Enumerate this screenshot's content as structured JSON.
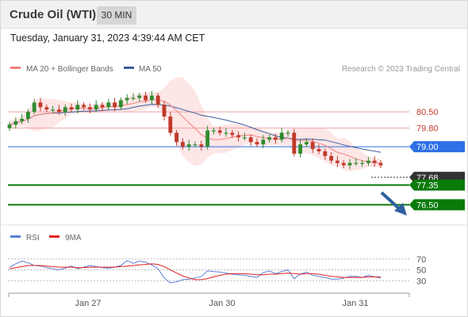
{
  "header": {
    "title": "Crude Oil (WTI)",
    "timeframe": "30 MIN"
  },
  "timestamp": "Tuesday, January 31, 2023 4:39:44 AM CET",
  "legend": {
    "ma20": "MA 20 + Bollinger Bands",
    "ma50": "MA 50",
    "credit": "Research © 2023 Trading Central"
  },
  "rsi_legend": {
    "rsi": "RSI",
    "ma9": "9MA"
  },
  "colors": {
    "ma20": "#f08080",
    "band": "#fde2e2",
    "ma50": "#3c5fa0",
    "support": "#0a7a0a",
    "pivot": "#2e6fe6",
    "resistance": "#f2a0a0",
    "current": "#333333",
    "up": "#2e8b2e",
    "down": "#c0392b",
    "arrow": "#2f5f9e",
    "rsi": "#5b7fd8",
    "rsi_ma": "#e02020"
  },
  "chart_data": [
    {
      "type": "candlestick",
      "title": "Crude Oil (WTI)",
      "interval": "30 MIN",
      "x_ticks": [
        "Jan 27",
        "Jan 30",
        "Jan 31"
      ],
      "y_range": [
        75.9,
        81.8
      ],
      "grid": false,
      "legend_position": "top-left",
      "series": [
        {
          "name": "Price",
          "approx_closes": [
            79.95,
            80.1,
            80.2,
            80.5,
            80.9,
            80.7,
            80.6,
            80.6,
            80.5,
            80.7,
            80.6,
            80.8,
            80.7,
            80.6,
            80.8,
            80.7,
            80.9,
            80.7,
            81.0,
            81.1,
            81.1,
            81.2,
            81.0,
            81.2,
            80.8,
            80.3,
            79.6,
            79.2,
            79.0,
            79.1,
            79.1,
            79.0,
            79.7,
            79.7,
            79.6,
            79.6,
            79.5,
            79.4,
            79.4,
            79.2,
            79.1,
            79.3,
            79.4,
            79.3,
            79.6,
            79.6,
            78.7,
            79.1,
            79.2,
            78.9,
            78.8,
            78.6,
            78.4,
            78.3,
            78.2,
            78.3,
            78.3,
            78.3,
            78.4,
            78.3,
            78.2
          ]
        },
        {
          "name": "MA 20",
          "style": "line with bollinger bands"
        },
        {
          "name": "MA 50",
          "style": "line"
        }
      ],
      "levels": [
        {
          "value": 80.5,
          "label": "80.50",
          "kind": "resistance"
        },
        {
          "value": 79.8,
          "label": "79.80",
          "kind": "resistance"
        },
        {
          "value": 79.0,
          "label": "79.00",
          "kind": "pivot"
        },
        {
          "value": 77.68,
          "label": "77.68",
          "kind": "current"
        },
        {
          "value": 77.35,
          "label": "77.35",
          "kind": "support"
        },
        {
          "value": 76.5,
          "label": "76.50",
          "kind": "support"
        }
      ],
      "annotations": [
        "Projected path arrow pointing down toward 76.50"
      ]
    },
    {
      "type": "line",
      "title": "RSI",
      "y_ticks": [
        70,
        50,
        30
      ],
      "y_range": [
        10,
        90
      ],
      "series": [
        {
          "name": "RSI",
          "values": [
            55,
            61,
            66,
            63,
            58,
            57,
            54,
            52,
            50,
            53,
            57,
            52,
            55,
            58,
            56,
            54,
            53,
            55,
            58,
            67,
            62,
            66,
            64,
            59,
            52,
            35,
            26,
            28,
            32,
            33,
            35,
            38,
            48,
            47,
            46,
            44,
            42,
            41,
            40,
            38,
            36,
            45,
            48,
            43,
            47,
            50,
            34,
            42,
            46,
            40,
            38,
            36,
            33,
            33,
            35,
            38,
            38,
            36,
            40,
            37,
            35
          ]
        },
        {
          "name": "9MA",
          "values": [
            52,
            54,
            56,
            58,
            58,
            58,
            57,
            56,
            55,
            55,
            55,
            54,
            54,
            55,
            55,
            55,
            55,
            55,
            56,
            57,
            58,
            59,
            60,
            61,
            60,
            56,
            50,
            44,
            39,
            35,
            32,
            32,
            34,
            37,
            40,
            42,
            43,
            43,
            43,
            42,
            41,
            41,
            42,
            42,
            43,
            44,
            43,
            42,
            43,
            43,
            42,
            40,
            38,
            37,
            36,
            36,
            36,
            36,
            37,
            37,
            37
          ]
        }
      ]
    }
  ]
}
